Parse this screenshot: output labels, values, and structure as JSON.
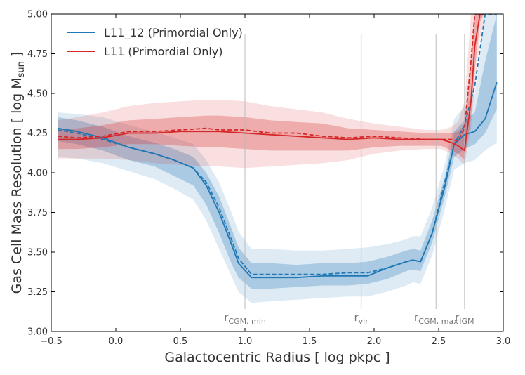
{
  "chart_data": {
    "type": "line",
    "xlabel": "Galactocentric Radius [ log pkpc ]",
    "ylabel_main": "Gas Cell Mass Resolution [ log M",
    "ylabel_sub": "sun",
    "ylabel_end": " ]",
    "xlim": [
      -0.5,
      3.0
    ],
    "ylim": [
      3.0,
      5.0
    ],
    "xticks": [
      -0.5,
      0.0,
      0.5,
      1.0,
      1.5,
      2.0,
      2.5,
      3.0
    ],
    "xtick_labels": [
      "−0.5",
      "0.0",
      "0.5",
      "1.0",
      "1.5",
      "2.0",
      "2.5",
      "3.0"
    ],
    "yticks": [
      3.0,
      3.25,
      3.5,
      3.75,
      4.0,
      4.25,
      4.5,
      4.75,
      5.0
    ],
    "ytick_labels": [
      "3.00",
      "3.25",
      "3.50",
      "3.75",
      "4.00",
      "4.25",
      "4.50",
      "4.75",
      "5.00"
    ],
    "legend_position": "top-left",
    "vlines": [
      {
        "x": 1.0,
        "main": "r",
        "sub": "CGM, min"
      },
      {
        "x": 1.9,
        "main": "r",
        "sub": "vir"
      },
      {
        "x": 2.48,
        "main": "r",
        "sub": "CGM, max"
      },
      {
        "x": 2.7,
        "main": "r",
        "sub": "IGM"
      }
    ],
    "series": [
      {
        "name": "L11_12 (Primordial Only)",
        "color": "#1f77b4",
        "x": [
          -0.45,
          -0.3,
          -0.1,
          0.1,
          0.3,
          0.45,
          0.6,
          0.7,
          0.8,
          0.9,
          0.95,
          1.05,
          1.2,
          1.4,
          1.6,
          1.8,
          1.95,
          2.1,
          2.25,
          2.3,
          2.36,
          2.45,
          2.55,
          2.62,
          2.7,
          2.78,
          2.86,
          2.95
        ],
        "y": [
          4.28,
          4.26,
          4.22,
          4.16,
          4.12,
          4.08,
          4.03,
          3.92,
          3.75,
          3.54,
          3.43,
          3.34,
          3.34,
          3.34,
          3.35,
          3.35,
          3.35,
          3.4,
          3.44,
          3.45,
          3.44,
          3.62,
          3.92,
          4.18,
          4.24,
          4.26,
          4.34,
          4.57
        ],
        "dashed_y": [
          4.27,
          4.25,
          4.21,
          4.16,
          4.12,
          4.08,
          4.03,
          3.94,
          3.78,
          3.57,
          3.46,
          3.36,
          3.36,
          3.36,
          3.36,
          3.37,
          3.37,
          3.4,
          3.44,
          3.45,
          3.44,
          3.62,
          3.95,
          4.18,
          4.3,
          4.55,
          5.0,
          5.0
        ],
        "band_inner_lo": [
          4.2,
          4.18,
          4.14,
          4.08,
          4.04,
          3.98,
          3.92,
          3.8,
          3.62,
          3.42,
          3.34,
          3.27,
          3.27,
          3.28,
          3.29,
          3.29,
          3.3,
          3.33,
          3.38,
          3.39,
          3.38,
          3.56,
          3.86,
          4.1,
          4.15,
          4.18,
          4.25,
          4.4
        ],
        "band_inner_hi": [
          4.35,
          4.33,
          4.29,
          4.23,
          4.19,
          4.15,
          4.1,
          4.0,
          3.85,
          3.64,
          3.53,
          3.43,
          3.43,
          3.42,
          3.43,
          3.43,
          3.44,
          3.47,
          3.51,
          3.52,
          3.51,
          3.7,
          3.98,
          4.26,
          4.33,
          4.38,
          4.7,
          5.0
        ],
        "band_outer_lo": [
          4.1,
          4.09,
          4.06,
          4.01,
          3.96,
          3.9,
          3.83,
          3.7,
          3.52,
          3.34,
          3.25,
          3.18,
          3.19,
          3.2,
          3.21,
          3.22,
          3.22,
          3.25,
          3.29,
          3.31,
          3.3,
          3.48,
          3.78,
          4.02,
          4.06,
          4.08,
          4.14,
          4.19
        ],
        "band_outer_hi": [
          4.38,
          4.37,
          4.35,
          4.3,
          4.26,
          4.22,
          4.18,
          4.08,
          3.94,
          3.74,
          3.63,
          3.52,
          3.52,
          3.51,
          3.51,
          3.52,
          3.53,
          3.55,
          3.58,
          3.6,
          3.6,
          3.78,
          4.06,
          4.34,
          4.42,
          4.5,
          5.0,
          5.0
        ]
      },
      {
        "name": "L11 (Primordial Only)",
        "color": "#d62728",
        "x": [
          -0.45,
          -0.3,
          -0.1,
          0.1,
          0.3,
          0.5,
          0.7,
          0.8,
          1.0,
          1.2,
          1.4,
          1.6,
          1.8,
          2.0,
          2.2,
          2.4,
          2.52,
          2.6,
          2.65,
          2.7,
          2.75,
          2.78,
          2.82,
          2.85
        ],
        "y": [
          4.21,
          4.21,
          4.22,
          4.25,
          4.25,
          4.26,
          4.26,
          4.26,
          4.25,
          4.24,
          4.23,
          4.22,
          4.21,
          4.22,
          4.21,
          4.21,
          4.21,
          4.19,
          4.17,
          4.14,
          4.45,
          4.8,
          5.0,
          5.0
        ],
        "dashed_y": [
          4.23,
          4.22,
          4.23,
          4.26,
          4.26,
          4.27,
          4.28,
          4.27,
          4.27,
          4.25,
          4.25,
          4.23,
          4.22,
          4.23,
          4.22,
          4.21,
          4.21,
          4.21,
          4.2,
          4.28,
          4.7,
          5.0,
          5.0,
          5.0
        ],
        "band_inner_lo": [
          4.15,
          4.15,
          4.16,
          4.18,
          4.18,
          4.17,
          4.16,
          4.16,
          4.15,
          4.14,
          4.14,
          4.14,
          4.14,
          4.16,
          4.17,
          4.17,
          4.17,
          4.14,
          4.12,
          4.08,
          4.35,
          4.65,
          4.95,
          5.0
        ],
        "band_inner_hi": [
          4.27,
          4.28,
          4.3,
          4.33,
          4.34,
          4.35,
          4.36,
          4.36,
          4.35,
          4.33,
          4.32,
          4.31,
          4.28,
          4.27,
          4.26,
          4.25,
          4.25,
          4.25,
          4.26,
          4.3,
          4.7,
          5.0,
          5.0,
          5.0
        ],
        "band_outer_lo": [
          4.09,
          4.09,
          4.09,
          4.08,
          4.06,
          4.05,
          4.04,
          4.04,
          4.03,
          4.04,
          4.05,
          4.06,
          4.08,
          4.12,
          4.14,
          4.15,
          4.15,
          4.12,
          4.09,
          4.05,
          4.28,
          4.55,
          4.85,
          4.95
        ],
        "band_outer_hi": [
          4.33,
          4.35,
          4.38,
          4.42,
          4.44,
          4.45,
          4.46,
          4.46,
          4.45,
          4.42,
          4.4,
          4.38,
          4.34,
          4.31,
          4.29,
          4.27,
          4.27,
          4.29,
          4.32,
          4.45,
          5.0,
          5.0,
          5.0,
          5.0
        ]
      }
    ]
  }
}
